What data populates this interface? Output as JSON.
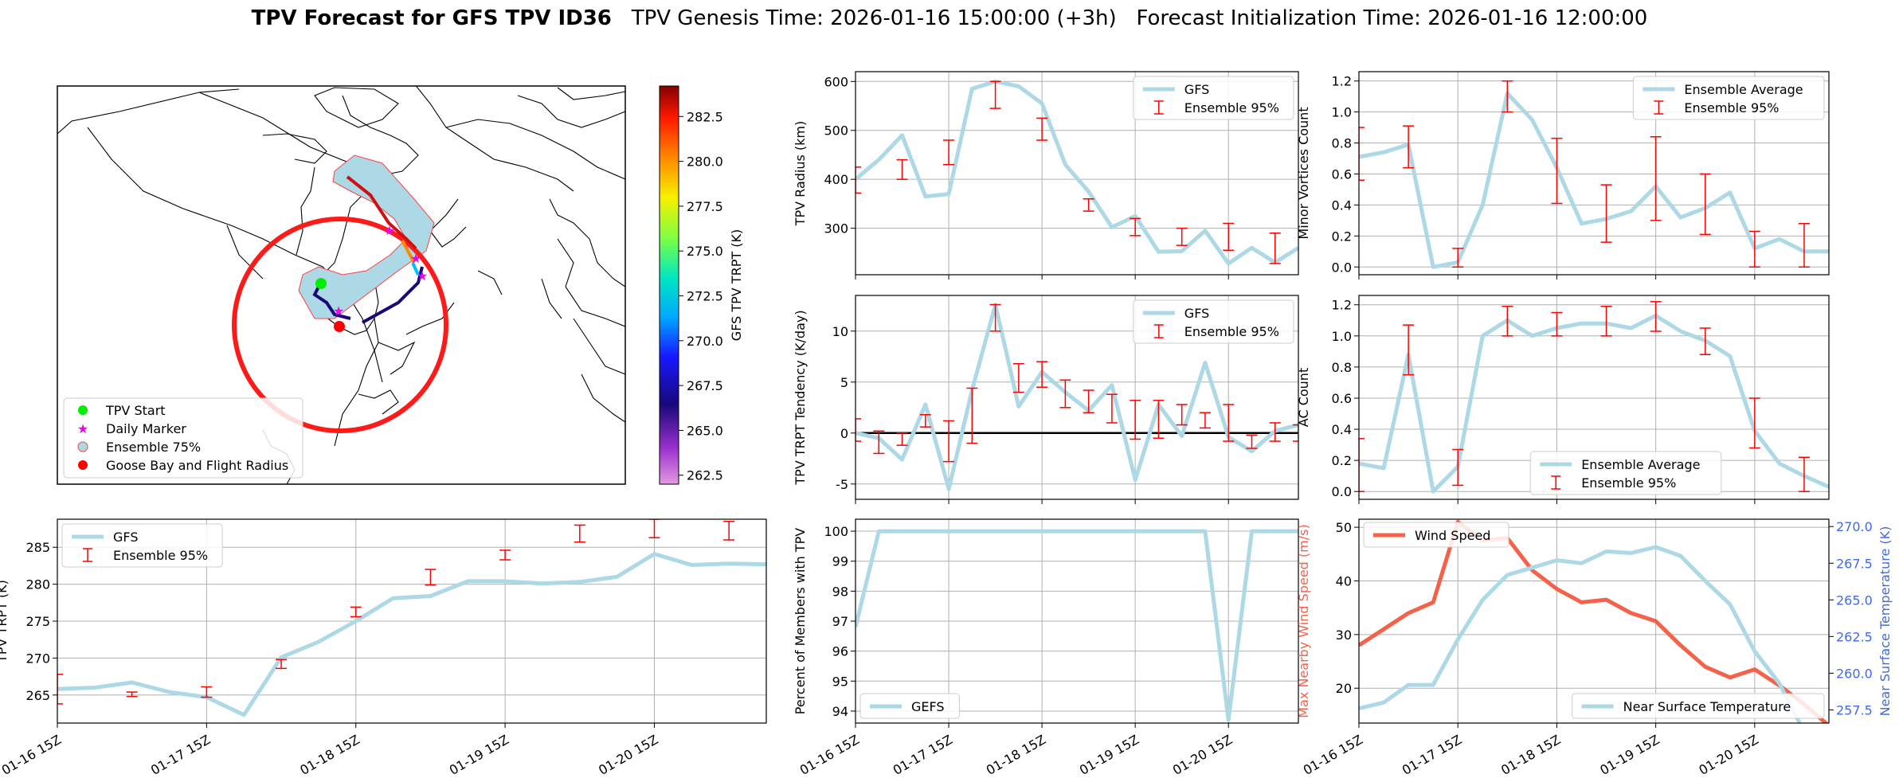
{
  "title": {
    "bold": "TPV Forecast for GFS TPV ID36",
    "genesis": "TPV Genesis Time: 2026-01-16 15:00:00 (+3h)",
    "init": "Forecast Initialization Time: 2026-01-16 12:00:00"
  },
  "colors": {
    "gfs_line": "#add8e6",
    "ensemble_err": "#ff0000",
    "wind": "#f4624a",
    "temp_axis": "#4169e1",
    "track_shade": "#add8e6",
    "flight_circle": "#ff1a1a"
  },
  "map": {
    "legend": [
      "TPV Start",
      "Daily Marker",
      "Ensemble 75%",
      "Goose Bay and Flight Radius"
    ],
    "colorbar": {
      "label": "GFS TPV TRPT (K)",
      "ticks": [
        262.5,
        265.0,
        267.5,
        270.0,
        272.5,
        275.0,
        277.5,
        280.0,
        282.5
      ],
      "range": [
        262.0,
        284.2
      ]
    }
  },
  "time_ticks": [
    "01-16 15Z",
    "01-17 15Z",
    "01-18 15Z",
    "01-19 15Z",
    "01-20 15Z"
  ],
  "chart_data": [
    {
      "id": "radius",
      "type": "line",
      "ylabel": "TPV Radius (km)",
      "ylim": [
        205,
        620
      ],
      "yticks": [
        300,
        400,
        500,
        600
      ],
      "xrange": [
        0,
        114
      ],
      "xlabels": false,
      "legend": {
        "line": "GFS",
        "err": "Ensemble 95%",
        "loc": "upper-right"
      },
      "series": [
        {
          "name": "GFS",
          "x": [
            0,
            6,
            12,
            18,
            24,
            30,
            36,
            42,
            48,
            54,
            60,
            66,
            72,
            78,
            84,
            90,
            96,
            102,
            108,
            114
          ],
          "values": [
            400,
            440,
            490,
            365,
            370,
            585,
            600,
            590,
            555,
            430,
            375,
            302,
            325,
            252,
            253,
            295,
            228,
            260,
            230,
            260
          ]
        }
      ],
      "errorbars": {
        "x": [
          0,
          12,
          24,
          36,
          48,
          60,
          72,
          84,
          96,
          108
        ],
        "low": [
          372,
          400,
          430,
          545,
          480,
          335,
          285,
          265,
          255,
          228
        ],
        "high": [
          425,
          440,
          480,
          600,
          525,
          360,
          320,
          300,
          310,
          290
        ]
      }
    },
    {
      "id": "minor",
      "type": "line",
      "ylabel": "Minor Vortices Count",
      "ylim": [
        -0.05,
        1.26
      ],
      "yticks": [
        0.0,
        0.2,
        0.4,
        0.6,
        0.8,
        1.0,
        1.2
      ],
      "xrange": [
        0,
        114
      ],
      "xlabels": false,
      "legend": {
        "line": "Ensemble Average",
        "err": "Ensemble 95%",
        "loc": "upper-right"
      },
      "series": [
        {
          "name": "Ensemble Average",
          "x": [
            0,
            6,
            12,
            18,
            24,
            30,
            36,
            42,
            48,
            54,
            60,
            66,
            72,
            78,
            84,
            90,
            96,
            102,
            108,
            114
          ],
          "values": [
            0.71,
            0.74,
            0.79,
            0.0,
            0.03,
            0.4,
            1.12,
            0.95,
            0.64,
            0.28,
            0.31,
            0.36,
            0.52,
            0.32,
            0.38,
            0.48,
            0.12,
            0.18,
            0.1,
            0.1
          ]
        }
      ],
      "errorbars": {
        "x": [
          0,
          12,
          24,
          36,
          48,
          60,
          72,
          84,
          96,
          108
        ],
        "low": [
          0.56,
          0.64,
          0.0,
          1.0,
          0.41,
          0.16,
          0.3,
          0.21,
          0.0,
          0.0
        ],
        "high": [
          0.9,
          0.91,
          0.12,
          1.2,
          0.83,
          0.53,
          0.84,
          0.6,
          0.23,
          0.28
        ]
      }
    },
    {
      "id": "tendency",
      "type": "line",
      "ylabel": "TPV TRPT Tendency (K/day)",
      "ylim": [
        -6.5,
        13.5
      ],
      "yticks": [
        -5,
        0,
        5,
        10
      ],
      "xrange": [
        0,
        114
      ],
      "xlabels": false,
      "zero_line": true,
      "legend": {
        "line": "GFS",
        "err": "Ensemble 95%",
        "loc": "upper-right"
      },
      "series": [
        {
          "name": "GFS",
          "x": [
            0,
            6,
            12,
            18,
            24,
            30,
            36,
            42,
            48,
            54,
            60,
            66,
            72,
            78,
            84,
            90,
            96,
            102,
            108,
            114
          ],
          "values": [
            0,
            -0.5,
            -2.6,
            2.8,
            -5.5,
            4.2,
            12.6,
            2.6,
            6.0,
            4.0,
            2.2,
            4.7,
            -4.6,
            2.8,
            -0.3,
            6.9,
            -0.4,
            -1.8,
            0.2,
            0.8
          ]
        }
      ],
      "errorbars": {
        "x": [
          0,
          6,
          12,
          18,
          24,
          30,
          36,
          42,
          48,
          54,
          60,
          66,
          72,
          78,
          84,
          90,
          96,
          102,
          108,
          114
        ],
        "low": [
          -0.8,
          -2.0,
          -1.2,
          0.6,
          -2.8,
          -1.0,
          10.0,
          4.0,
          4.5,
          2.5,
          2.0,
          1.0,
          -0.6,
          -0.5,
          0.8,
          0.5,
          -0.8,
          -1.5,
          -0.8,
          -0.8
        ],
        "high": [
          1.4,
          0.2,
          0.0,
          1.8,
          1.2,
          4.4,
          12.6,
          6.8,
          7.0,
          5.2,
          4.2,
          3.8,
          3.2,
          3.2,
          2.8,
          2.0,
          2.8,
          -0.2,
          1.0,
          0.8
        ]
      }
    },
    {
      "id": "ac",
      "type": "line",
      "ylabel": "AC Count",
      "ylim": [
        -0.05,
        1.26
      ],
      "yticks": [
        0.0,
        0.2,
        0.4,
        0.6,
        0.8,
        1.0,
        1.2
      ],
      "xrange": [
        0,
        114
      ],
      "xlabels": false,
      "legend": {
        "line": "Ensemble Average",
        "err": "Ensemble 95%",
        "loc": "lower-center"
      },
      "series": [
        {
          "name": "Ensemble Average",
          "x": [
            0,
            6,
            12,
            18,
            24,
            30,
            36,
            42,
            48,
            54,
            60,
            66,
            72,
            78,
            84,
            90,
            96,
            102,
            108,
            114
          ],
          "values": [
            0.18,
            0.15,
            0.88,
            0.0,
            0.16,
            1.0,
            1.1,
            1.0,
            1.05,
            1.08,
            1.08,
            1.05,
            1.13,
            1.03,
            0.97,
            0.87,
            0.39,
            0.18,
            0.1,
            0.03
          ]
        }
      ],
      "errorbars": {
        "x": [
          0,
          12,
          24,
          36,
          48,
          60,
          72,
          84,
          96,
          108
        ],
        "low": [
          0.0,
          0.75,
          0.04,
          1.0,
          1.0,
          1.0,
          1.03,
          0.88,
          0.28,
          0.0
        ],
        "high": [
          0.34,
          1.07,
          0.27,
          1.19,
          1.15,
          1.19,
          1.22,
          1.05,
          0.6,
          0.22
        ]
      }
    },
    {
      "id": "trpt",
      "type": "line",
      "ylabel": "TPV TRPT (K)",
      "ylim": [
        261.2,
        288.8
      ],
      "yticks": [
        265,
        270,
        275,
        280,
        285
      ],
      "xrange": [
        0,
        114
      ],
      "xlabels": true,
      "legend": {
        "line": "GFS",
        "err": "Ensemble 95%",
        "loc": "upper-left"
      },
      "series": [
        {
          "name": "GFS",
          "x": [
            0,
            6,
            12,
            18,
            24,
            30,
            36,
            42,
            48,
            54,
            60,
            66,
            72,
            78,
            84,
            90,
            96,
            102,
            108,
            114
          ],
          "values": [
            265.8,
            266.0,
            266.7,
            265.4,
            264.7,
            262.3,
            270.1,
            272.2,
            275.0,
            278.1,
            278.4,
            280.4,
            280.4,
            280.1,
            280.3,
            281.0,
            284.1,
            282.6,
            282.8,
            282.7
          ]
        }
      ],
      "errorbars": {
        "x": [
          0,
          12,
          24,
          36,
          48,
          60,
          72,
          84,
          96,
          108
        ],
        "low": [
          263.8,
          264.8,
          264.7,
          268.6,
          275.6,
          279.9,
          283.3,
          285.7,
          286.3,
          286.0
        ],
        "high": [
          267.8,
          265.4,
          266.1,
          269.8,
          276.9,
          282.0,
          284.6,
          288.0,
          288.8,
          288.5
        ]
      }
    },
    {
      "id": "members",
      "type": "line",
      "ylabel": "Percent of Members with TPV",
      "ylim": [
        93.6,
        100.4
      ],
      "yticks": [
        94,
        95,
        96,
        97,
        98,
        99,
        100
      ],
      "xrange": [
        0,
        114
      ],
      "xlabels": true,
      "legend": {
        "line": "GEFS",
        "loc": "lower-left"
      },
      "series": [
        {
          "name": "GEFS",
          "x": [
            0,
            6,
            12,
            18,
            24,
            30,
            36,
            42,
            48,
            54,
            60,
            66,
            72,
            78,
            84,
            90,
            96,
            102,
            108,
            114
          ],
          "values": [
            96.8,
            100,
            100,
            100,
            100,
            100,
            100,
            100,
            100,
            100,
            100,
            100,
            100,
            100,
            100,
            100,
            93.7,
            100,
            100,
            100
          ]
        }
      ]
    },
    {
      "id": "wind_temp",
      "type": "line",
      "ylabel": "Max Nearby Wind Speed (m/s)",
      "ylim": [
        13.5,
        51.5
      ],
      "yticks": [
        20,
        30,
        40,
        50
      ],
      "xrange": [
        0,
        114
      ],
      "xlabels": true,
      "y2label": "Near Surface Temperature (K)",
      "y2lim": [
        256.6,
        270.5
      ],
      "y2ticks": [
        257.5,
        260.0,
        262.5,
        265.0,
        267.5,
        270.0
      ],
      "legend": {
        "wind": "Wind Speed",
        "temp": "Near Surface Temperature"
      },
      "series": [
        {
          "name": "Wind Speed",
          "axis": "left",
          "x": [
            0,
            6,
            12,
            18,
            24,
            30,
            36,
            42,
            48,
            54,
            60,
            66,
            72,
            78,
            84,
            90,
            96,
            102,
            108,
            114
          ],
          "values": [
            28,
            31,
            34,
            36,
            51,
            47.5,
            48,
            42,
            38.5,
            36,
            36.5,
            34,
            32.5,
            28,
            24,
            22,
            23.5,
            20.5,
            17,
            13
          ]
        },
        {
          "name": "Near Surface Temperature",
          "axis": "right",
          "x": [
            0,
            6,
            12,
            18,
            24,
            30,
            36,
            42,
            48,
            54,
            60,
            66,
            72,
            78,
            84,
            90,
            96,
            102,
            108,
            114
          ],
          "values": [
            257.6,
            258.0,
            259.2,
            259.2,
            262.3,
            265.0,
            266.7,
            267.2,
            267.7,
            267.5,
            268.3,
            268.2,
            268.6,
            268.0,
            266.3,
            264.7,
            261.5,
            259.3,
            256.0,
            256.1
          ]
        }
      ]
    }
  ]
}
